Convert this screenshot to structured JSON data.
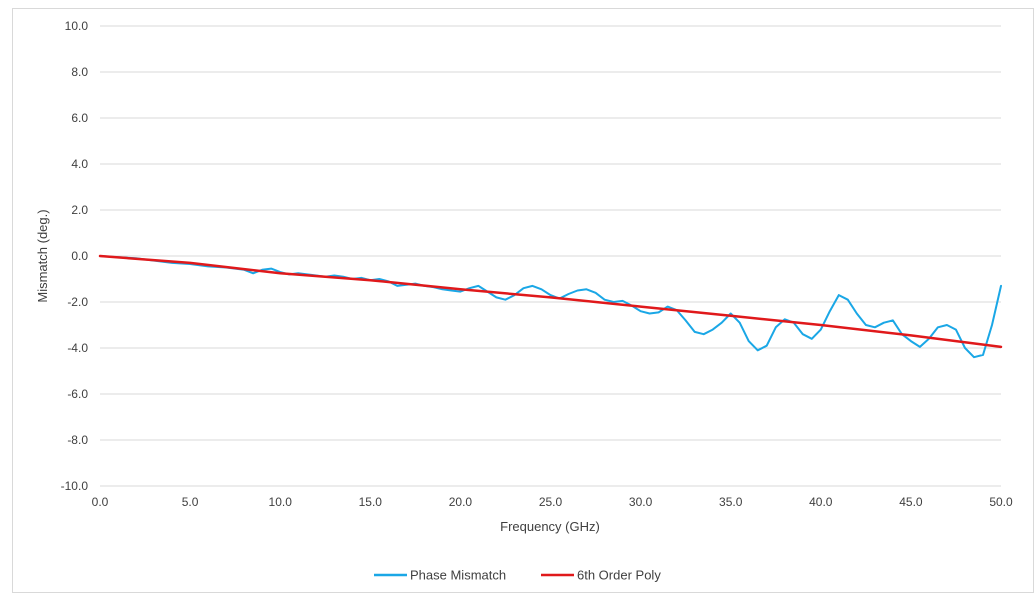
{
  "colors": {
    "phase": "#1aa7e6",
    "poly": "#e0191b",
    "grid": "#d9d9d9",
    "text": "#404040"
  },
  "chart_data": {
    "type": "line",
    "title": "",
    "xlabel": "Frequency (GHz)",
    "ylabel": "Mismatch (deg.)",
    "xlim": [
      0,
      50
    ],
    "ylim": [
      -10,
      10
    ],
    "x_ticks": [
      "0.0",
      "5.0",
      "10.0",
      "15.0",
      "20.0",
      "25.0",
      "30.0",
      "35.0",
      "40.0",
      "45.0",
      "50.0"
    ],
    "y_ticks": [
      "10.0",
      "8.0",
      "6.0",
      "4.0",
      "2.0",
      "0.0",
      "-2.0",
      "-4.0",
      "-6.0",
      "-8.0",
      "-10.0"
    ],
    "grid": "horizontal",
    "legend_position": "bottom",
    "series": [
      {
        "name": "Phase Mismatch",
        "color": "#1aa7e6",
        "x": [
          0,
          1,
          2,
          3,
          4,
          5,
          6,
          7,
          8,
          8.5,
          9,
          9.5,
          10,
          10.5,
          11,
          11.5,
          12,
          12.5,
          13,
          13.5,
          14,
          14.5,
          15,
          15.5,
          16,
          16.5,
          17,
          17.5,
          18,
          18.5,
          19,
          19.5,
          20,
          20.5,
          21,
          21.5,
          22,
          22.5,
          23,
          23.5,
          24,
          24.5,
          25,
          25.5,
          26,
          26.5,
          27,
          27.5,
          28,
          28.5,
          29,
          29.5,
          30,
          30.5,
          31,
          31.5,
          32,
          32.5,
          33,
          33.5,
          34,
          34.5,
          35,
          35.5,
          36,
          36.5,
          37,
          37.5,
          38,
          38.5,
          39,
          39.5,
          40,
          40.5,
          41,
          41.5,
          42,
          42.5,
          43,
          43.5,
          44,
          44.5,
          45,
          45.5,
          46,
          46.5,
          47,
          47.5,
          48,
          48.5,
          49,
          49.5,
          50
        ],
        "y": [
          0,
          -0.05,
          -0.1,
          -0.2,
          -0.3,
          -0.35,
          -0.45,
          -0.5,
          -0.6,
          -0.75,
          -0.6,
          -0.55,
          -0.7,
          -0.8,
          -0.75,
          -0.8,
          -0.85,
          -0.9,
          -0.85,
          -0.9,
          -1.0,
          -0.95,
          -1.05,
          -1.0,
          -1.1,
          -1.3,
          -1.25,
          -1.2,
          -1.3,
          -1.35,
          -1.45,
          -1.5,
          -1.55,
          -1.4,
          -1.3,
          -1.55,
          -1.8,
          -1.9,
          -1.7,
          -1.4,
          -1.3,
          -1.45,
          -1.7,
          -1.85,
          -1.65,
          -1.5,
          -1.45,
          -1.6,
          -1.9,
          -2.0,
          -1.95,
          -2.15,
          -2.4,
          -2.5,
          -2.45,
          -2.2,
          -2.35,
          -2.8,
          -3.3,
          -3.4,
          -3.2,
          -2.9,
          -2.5,
          -2.9,
          -3.7,
          -4.1,
          -3.9,
          -3.1,
          -2.75,
          -2.9,
          -3.4,
          -3.6,
          -3.2,
          -2.4,
          -1.7,
          -1.9,
          -2.5,
          -3.0,
          -3.1,
          -2.9,
          -2.8,
          -3.4,
          -3.7,
          -3.95,
          -3.6,
          -3.1,
          -3.0,
          -3.2,
          -4.0,
          -4.4,
          -4.3,
          -3.0,
          -1.3
        ]
      },
      {
        "name": "6th Order Poly",
        "color": "#e0191b",
        "x": [
          0,
          5,
          10,
          15,
          20,
          25,
          30,
          35,
          40,
          45,
          50
        ],
        "y": [
          0,
          -0.3,
          -0.75,
          -1.05,
          -1.45,
          -1.8,
          -2.2,
          -2.6,
          -3.0,
          -3.45,
          -3.95
        ]
      }
    ]
  }
}
